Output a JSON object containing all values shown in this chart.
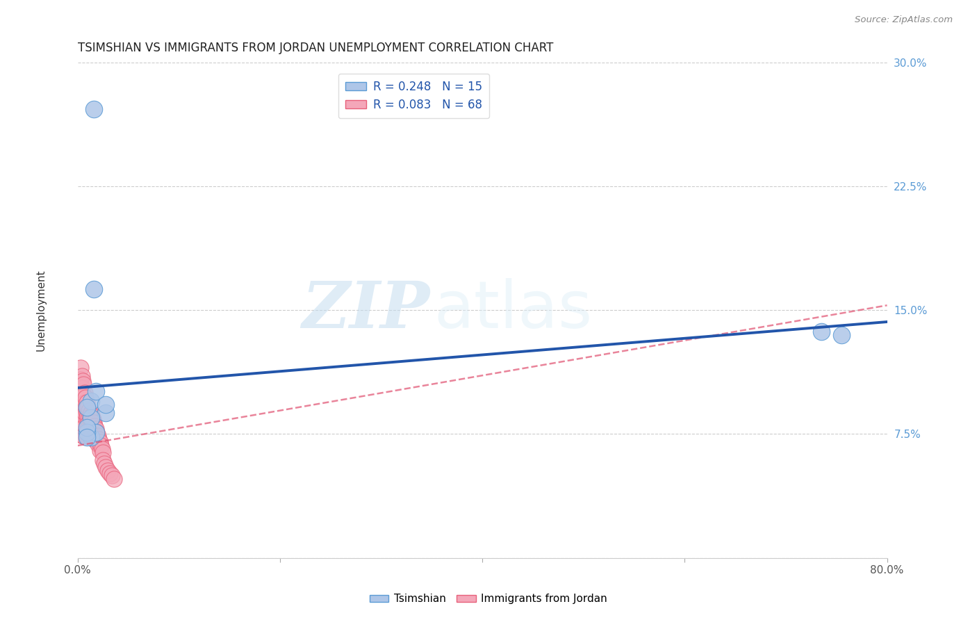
{
  "title": "TSIMSHIAN VS IMMIGRANTS FROM JORDAN UNEMPLOYMENT CORRELATION CHART",
  "source": "Source: ZipAtlas.com",
  "ylabel": "Unemployment",
  "xlim": [
    0,
    0.8
  ],
  "ylim": [
    0,
    0.3
  ],
  "yticks": [
    0.0,
    0.075,
    0.15,
    0.225,
    0.3
  ],
  "ytick_labels": [
    "",
    "7.5%",
    "15.0%",
    "22.5%",
    "30.0%"
  ],
  "xticks": [
    0.0,
    0.2,
    0.4,
    0.6,
    0.8
  ],
  "xtick_labels": [
    "0.0%",
    "",
    "",
    "",
    "80.0%"
  ],
  "legend_label1": "R = 0.248   N = 15",
  "legend_label2": "R = 0.083   N = 68",
  "watermark_zip": "ZIP",
  "watermark_atlas": "atlas",
  "background_color": "#ffffff",
  "grid_color": "#cccccc",
  "tsimshian_color": "#aec6e8",
  "tsimshian_edge_color": "#5b9bd5",
  "jordan_color": "#f4a7b9",
  "jordan_edge_color": "#e8607a",
  "tsimshian_trend_color": "#2255aa",
  "jordan_trend_color": "#e05070",
  "tick_color": "#5b9bd5",
  "tsimshian_trend_x0": 0.0,
  "tsimshian_trend_y0": 0.103,
  "tsimshian_trend_x1": 0.8,
  "tsimshian_trend_y1": 0.143,
  "jordan_trend_x0": 0.0,
  "jordan_trend_y0": 0.068,
  "jordan_trend_x1": 0.8,
  "jordan_trend_y1": 0.153,
  "tsimshian_points_x": [
    0.016,
    0.016,
    0.028,
    0.013,
    0.013,
    0.009,
    0.018,
    0.028,
    0.013,
    0.018,
    0.735,
    0.755,
    0.009,
    0.009,
    0.009
  ],
  "tsimshian_points_y": [
    0.272,
    0.163,
    0.088,
    0.095,
    0.085,
    0.091,
    0.101,
    0.093,
    0.073,
    0.076,
    0.137,
    0.135,
    0.076,
    0.079,
    0.073
  ],
  "jordan_points_x": [
    0.003,
    0.003,
    0.003,
    0.003,
    0.004,
    0.004,
    0.004,
    0.004,
    0.005,
    0.005,
    0.005,
    0.005,
    0.005,
    0.005,
    0.005,
    0.006,
    0.006,
    0.006,
    0.006,
    0.006,
    0.006,
    0.007,
    0.007,
    0.007,
    0.008,
    0.008,
    0.009,
    0.009,
    0.009,
    0.009,
    0.009,
    0.01,
    0.01,
    0.01,
    0.01,
    0.011,
    0.012,
    0.012,
    0.013,
    0.013,
    0.013,
    0.014,
    0.014,
    0.015,
    0.015,
    0.015,
    0.016,
    0.016,
    0.016,
    0.017,
    0.018,
    0.018,
    0.019,
    0.02,
    0.02,
    0.021,
    0.022,
    0.022,
    0.023,
    0.024,
    0.025,
    0.025,
    0.026,
    0.028,
    0.03,
    0.032,
    0.034,
    0.036
  ],
  "jordan_points_y": [
    0.115,
    0.108,
    0.105,
    0.098,
    0.11,
    0.103,
    0.096,
    0.09,
    0.107,
    0.099,
    0.093,
    0.087,
    0.082,
    0.078,
    0.074,
    0.105,
    0.098,
    0.091,
    0.085,
    0.079,
    0.074,
    0.1,
    0.094,
    0.088,
    0.097,
    0.091,
    0.094,
    0.088,
    0.083,
    0.078,
    0.073,
    0.091,
    0.086,
    0.081,
    0.076,
    0.089,
    0.086,
    0.081,
    0.088,
    0.083,
    0.078,
    0.086,
    0.081,
    0.084,
    0.079,
    0.074,
    0.082,
    0.077,
    0.072,
    0.08,
    0.078,
    0.073,
    0.076,
    0.074,
    0.069,
    0.072,
    0.07,
    0.065,
    0.068,
    0.066,
    0.064,
    0.059,
    0.057,
    0.055,
    0.053,
    0.051,
    0.05,
    0.048
  ]
}
